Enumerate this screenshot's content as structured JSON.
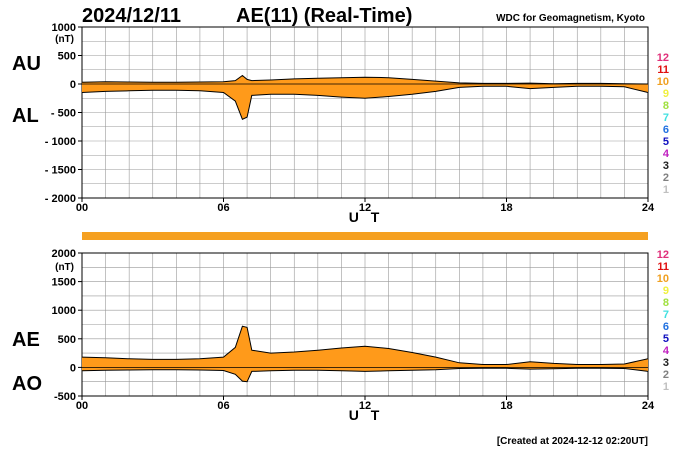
{
  "header": {
    "date": "2024/12/11",
    "title": "AE(11) (Real-Time)",
    "org": "WDC for Geomagnetism, Kyoto"
  },
  "footer": {
    "created": "[Created at 2024-12-12 02:20UT]"
  },
  "legend": {
    "items": [
      {
        "label": "12",
        "color": "#e0307a"
      },
      {
        "label": "11",
        "color": "#e01010"
      },
      {
        "label": "10",
        "color": "#f0a020"
      },
      {
        "label": "9",
        "color": "#f0f040"
      },
      {
        "label": "8",
        "color": "#a0e040"
      },
      {
        "label": "7",
        "color": "#40e0e0"
      },
      {
        "label": "6",
        "color": "#2070e0"
      },
      {
        "label": "5",
        "color": "#1010c0"
      },
      {
        "label": "4",
        "color": "#c020c0"
      },
      {
        "label": "3",
        "color": "#202020"
      },
      {
        "label": "2",
        "color": "#808080"
      },
      {
        "label": "1",
        "color": "#c0c0c0"
      }
    ]
  },
  "colors": {
    "fill": "#ff9a1a",
    "grid": "#999999",
    "bar": "#f5a020"
  },
  "chart_data": [
    {
      "type": "area",
      "title": "AU / AL",
      "upper_label": "AU",
      "lower_label": "AL",
      "ylabel": "(nT)",
      "xlabel": "U T",
      "ylim": [
        -2000,
        1000
      ],
      "yticks": [
        {
          "value": 1000,
          "label": "1000"
        },
        {
          "value": 500,
          "label": "500"
        },
        {
          "value": 0,
          "label": "0"
        },
        {
          "value": -500,
          "label": "- 500"
        },
        {
          "value": -1000,
          "label": "- 1000"
        },
        {
          "value": -1500,
          "label": "- 1500"
        },
        {
          "value": -2000,
          "label": "- 2000"
        }
      ],
      "xlim": [
        0,
        24
      ],
      "xticks": [
        {
          "value": 0,
          "label": "00"
        },
        {
          "value": 6,
          "label": "06"
        },
        {
          "value": 12,
          "label": "12"
        },
        {
          "value": 18,
          "label": "18"
        },
        {
          "value": 24,
          "label": "24"
        }
      ],
      "x": [
        0,
        1,
        2,
        3,
        4,
        5,
        6,
        6.5,
        6.8,
        7,
        7.2,
        8,
        9,
        10,
        11,
        12,
        13,
        14,
        15,
        16,
        17,
        18,
        19,
        20,
        21,
        22,
        23,
        24
      ],
      "upper": [
        30,
        40,
        35,
        30,
        30,
        35,
        40,
        60,
        150,
        80,
        60,
        70,
        90,
        100,
        110,
        120,
        110,
        80,
        50,
        20,
        10,
        10,
        15,
        5,
        10,
        10,
        5,
        0
      ],
      "lower": [
        -150,
        -130,
        -120,
        -110,
        -110,
        -120,
        -150,
        -300,
        -620,
        -580,
        -200,
        -180,
        -180,
        -200,
        -230,
        -250,
        -220,
        -180,
        -130,
        -60,
        -40,
        -40,
        -80,
        -60,
        -40,
        -40,
        -50,
        -150
      ]
    },
    {
      "type": "area",
      "title": "AE / AO",
      "upper_label": "AE",
      "lower_label": "AO",
      "ylabel": "(nT)",
      "xlabel": "U T",
      "ylim": [
        -500,
        2000
      ],
      "yticks": [
        {
          "value": 2000,
          "label": "2000"
        },
        {
          "value": 1500,
          "label": "1500"
        },
        {
          "value": 1000,
          "label": "1000"
        },
        {
          "value": 500,
          "label": "500"
        },
        {
          "value": 0,
          "label": "0"
        },
        {
          "value": -500,
          "label": "-500"
        }
      ],
      "xlim": [
        0,
        24
      ],
      "xticks": [
        {
          "value": 0,
          "label": "00"
        },
        {
          "value": 6,
          "label": "06"
        },
        {
          "value": 12,
          "label": "12"
        },
        {
          "value": 18,
          "label": "18"
        },
        {
          "value": 24,
          "label": "24"
        }
      ],
      "x": [
        0,
        1,
        2,
        3,
        4,
        5,
        6,
        6.5,
        6.8,
        7,
        7.2,
        8,
        9,
        10,
        11,
        12,
        13,
        14,
        15,
        16,
        17,
        18,
        19,
        20,
        21,
        22,
        23,
        24
      ],
      "upper": [
        180,
        170,
        150,
        140,
        140,
        150,
        180,
        350,
        720,
        700,
        300,
        250,
        270,
        300,
        340,
        370,
        330,
        260,
        180,
        80,
        50,
        50,
        100,
        70,
        50,
        50,
        60,
        150
      ],
      "lower": [
        -60,
        -50,
        -45,
        -40,
        -40,
        -45,
        -55,
        -120,
        -240,
        -250,
        -70,
        -60,
        -50,
        -50,
        -60,
        -70,
        -60,
        -50,
        -40,
        -20,
        -15,
        -15,
        -30,
        -25,
        -15,
        -15,
        -20,
        -70
      ]
    }
  ]
}
